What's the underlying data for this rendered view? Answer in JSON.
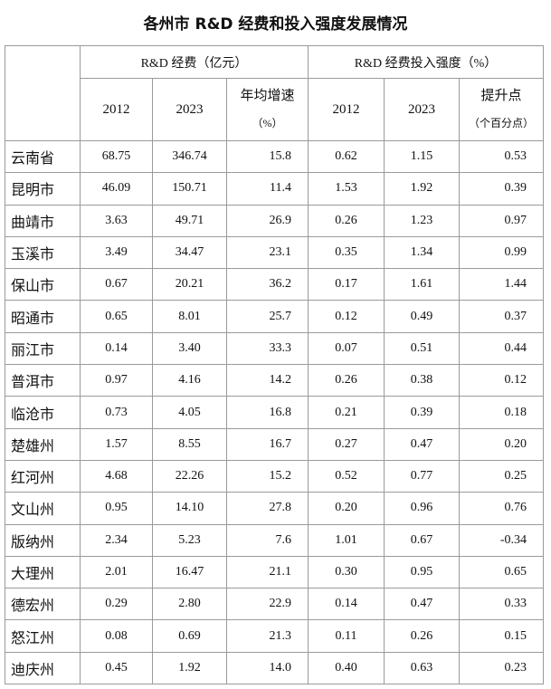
{
  "title": "各州市 R&D 经费和投入强度发展情况",
  "header": {
    "group1": "R&D 经费（亿元）",
    "group2": "R&D 经费投入强度（%）",
    "columns": [
      {
        "label": "2012"
      },
      {
        "label": "2023"
      },
      {
        "label": "年均增速",
        "unit": "（%）"
      },
      {
        "label": "2012"
      },
      {
        "label": "2023"
      },
      {
        "label": "提升点",
        "unit": "（个百分点）"
      }
    ]
  },
  "table": {
    "rows": [
      [
        "云南省",
        "68.75",
        "346.74",
        "15.8",
        "0.62",
        "1.15",
        "0.53"
      ],
      [
        "昆明市",
        "46.09",
        "150.71",
        "11.4",
        "1.53",
        "1.92",
        "0.39"
      ],
      [
        "曲靖市",
        "3.63",
        "49.71",
        "26.9",
        "0.26",
        "1.23",
        "0.97"
      ],
      [
        "玉溪市",
        "3.49",
        "34.47",
        "23.1",
        "0.35",
        "1.34",
        "0.99"
      ],
      [
        "保山市",
        "0.67",
        "20.21",
        "36.2",
        "0.17",
        "1.61",
        "1.44"
      ],
      [
        "昭通市",
        "0.65",
        "8.01",
        "25.7",
        "0.12",
        "0.49",
        "0.37"
      ],
      [
        "丽江市",
        "0.14",
        "3.40",
        "33.3",
        "0.07",
        "0.51",
        "0.44"
      ],
      [
        "普洱市",
        "0.97",
        "4.16",
        "14.2",
        "0.26",
        "0.38",
        "0.12"
      ],
      [
        "临沧市",
        "0.73",
        "4.05",
        "16.8",
        "0.21",
        "0.39",
        "0.18"
      ],
      [
        "楚雄州",
        "1.57",
        "8.55",
        "16.7",
        "0.27",
        "0.47",
        "0.20"
      ],
      [
        "红河州",
        "4.68",
        "22.26",
        "15.2",
        "0.52",
        "0.77",
        "0.25"
      ],
      [
        "文山州",
        "0.95",
        "14.10",
        "27.8",
        "0.20",
        "0.96",
        "0.76"
      ],
      [
        "版纳州",
        "2.34",
        "5.23",
        "7.6",
        "1.01",
        "0.67",
        "-0.34"
      ],
      [
        "大理州",
        "2.01",
        "16.47",
        "21.1",
        "0.30",
        "0.95",
        "0.65"
      ],
      [
        "德宏州",
        "0.29",
        "2.80",
        "22.9",
        "0.14",
        "0.47",
        "0.33"
      ],
      [
        "怒江州",
        "0.08",
        "0.69",
        "21.3",
        "0.11",
        "0.26",
        "0.15"
      ],
      [
        "迪庆州",
        "0.45",
        "1.92",
        "14.0",
        "0.40",
        "0.63",
        "0.23"
      ]
    ]
  }
}
